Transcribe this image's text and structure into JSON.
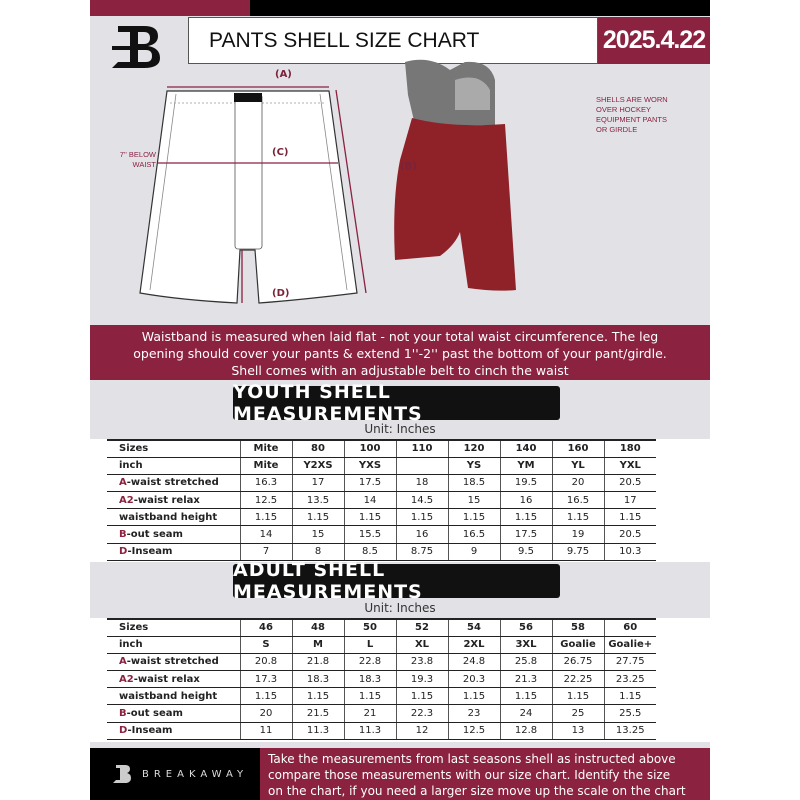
{
  "header": {
    "title": "PANTS SHELL SIZE CHART",
    "date": "2025.4.22",
    "logo": "B"
  },
  "diagram": {
    "label_a": "(A)",
    "label_b": "(B)",
    "label_c": "(C)",
    "label_d": "(D)",
    "below_waist": [
      "7'' BELOW",
      "WAIST"
    ],
    "note": [
      "SHELLS ARE WORN",
      "OVER HOCKEY",
      "EQUIPMENT PANTS",
      "OR GIRDLE"
    ]
  },
  "band": [
    "Waistband is measured when laid flat - not your total waist circumference. The leg",
    "opening should cover your pants & extend 1''-2'' past the bottom of your pant/girdle.",
    "Shell comes with an adjustable belt to cinch the waist"
  ],
  "colors": {
    "accent": "#8a2240",
    "dark": "#000000",
    "background": "#e2e2e6"
  },
  "youth": {
    "title": "YOUTH SHELL MEASUREMENTS",
    "unit": "Unit: Inches",
    "rows": [
      {
        "p": "",
        "l": "Sizes",
        "v": [
          "Mite",
          "80",
          "100",
          "110",
          "120",
          "140",
          "160",
          "180"
        ]
      },
      {
        "p": "",
        "l": "inch",
        "v": [
          "Mite",
          "Y2XS",
          "YXS",
          "",
          "YS",
          "YM",
          "YL",
          "YXL"
        ]
      },
      {
        "p": "A",
        "l": "-waist stretched",
        "v": [
          "16.3",
          "17",
          "17.5",
          "18",
          "18.5",
          "19.5",
          "20",
          "20.5"
        ]
      },
      {
        "p": "A2",
        "l": "-waist relax",
        "v": [
          "12.5",
          "13.5",
          "14",
          "14.5",
          "15",
          "16",
          "16.5",
          "17"
        ]
      },
      {
        "p": "",
        "l": "waistband height",
        "v": [
          "1.15",
          "1.15",
          "1.15",
          "1.15",
          "1.15",
          "1.15",
          "1.15",
          "1.15"
        ]
      },
      {
        "p": "B",
        "l": "-out seam",
        "v": [
          "14",
          "15",
          "15.5",
          "16",
          "16.5",
          "17.5",
          "19",
          "20.5"
        ]
      },
      {
        "p": "D",
        "l": "-Inseam",
        "v": [
          "7",
          "8",
          "8.5",
          "8.75",
          "9",
          "9.5",
          "9.75",
          "10.3"
        ]
      }
    ]
  },
  "adult": {
    "title": "ADULT SHELL MEASUREMENTS",
    "unit": "Unit: Inches",
    "rows": [
      {
        "p": "",
        "l": "Sizes",
        "v": [
          "46",
          "48",
          "50",
          "52",
          "54",
          "56",
          "58",
          "60"
        ]
      },
      {
        "p": "",
        "l": "inch",
        "v": [
          "S",
          "M",
          "L",
          "XL",
          "2XL",
          "3XL",
          "Goalie",
          "Goalie+"
        ]
      },
      {
        "p": "A",
        "l": "-waist stretched",
        "v": [
          "20.8",
          "21.8",
          "22.8",
          "23.8",
          "24.8",
          "25.8",
          "26.75",
          "27.75"
        ]
      },
      {
        "p": "A2",
        "l": "-waist relax",
        "v": [
          "17.3",
          "18.3",
          "18.3",
          "19.3",
          "20.3",
          "21.3",
          "22.25",
          "23.25"
        ]
      },
      {
        "p": "",
        "l": "waistband height",
        "v": [
          "1.15",
          "1.15",
          "1.15",
          "1.15",
          "1.15",
          "1.15",
          "1.15",
          "1.15"
        ]
      },
      {
        "p": "B",
        "l": "-out seam",
        "v": [
          "20",
          "21.5",
          "21",
          "22.3",
          "23",
          "24",
          "25",
          "25.5"
        ]
      },
      {
        "p": "D",
        "l": "-Inseam",
        "v": [
          "11",
          "11.3",
          "11.3",
          "12",
          "12.5",
          "12.8",
          "13",
          "13.25"
        ]
      }
    ]
  },
  "footer": {
    "brand": "BREAKAWAY",
    "text": [
      "Take the measurements from last seasons shell as instructed above",
      "compare those measurements  with our size chart. Identify the size",
      "on the chart, if you need a larger size move up the scale on the chart"
    ]
  }
}
